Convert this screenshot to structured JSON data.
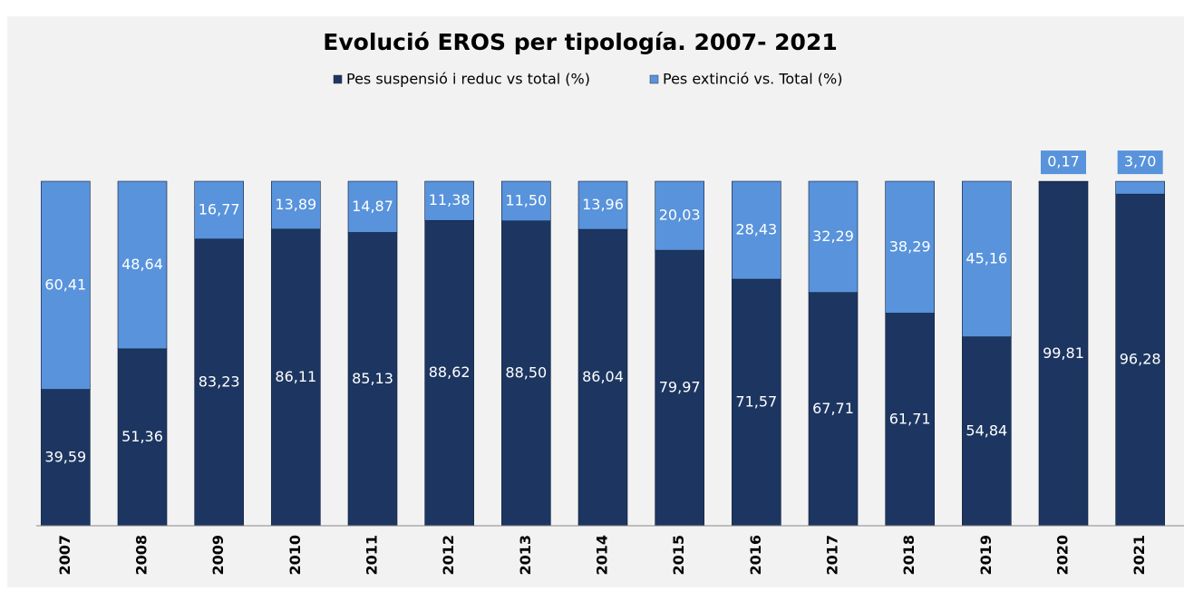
{
  "chart_data": {
    "type": "stacked_bar",
    "title": "Evolució EROS per tipología. 2007- 2021",
    "categories": [
      "2007",
      "2008",
      "2009",
      "2010",
      "2011",
      "2012",
      "2013",
      "2014",
      "2015",
      "2016",
      "2017",
      "2018",
      "2019",
      "2020",
      "2021"
    ],
    "series": [
      {
        "name": "Pes suspensió i reduc vs total (%)",
        "color": "#1d3661",
        "values": [
          39.59,
          51.36,
          83.23,
          86.11,
          85.13,
          88.62,
          88.5,
          86.04,
          79.97,
          71.57,
          67.71,
          61.71,
          54.84,
          99.81,
          96.28
        ],
        "value_labels": [
          "39,59",
          "51,36",
          "83,23",
          "86,11",
          "85,13",
          "88,62",
          "88,50",
          "86,04",
          "79,97",
          "71,57",
          "67,71",
          "61,71",
          "54,84",
          "99,81",
          "96,28"
        ]
      },
      {
        "name": "Pes extinció vs. Total (%)",
        "color": "#5893dc",
        "values": [
          60.41,
          48.64,
          16.77,
          13.89,
          14.87,
          11.38,
          11.5,
          13.96,
          20.03,
          28.43,
          32.29,
          38.29,
          45.16,
          0.17,
          3.7
        ],
        "value_labels": [
          "60,41",
          "48,64",
          "16,77",
          "13,89",
          "14,87",
          "11,38",
          "11,50",
          "13,96",
          "20,03",
          "28,43",
          "32,29",
          "38,29",
          "45,16",
          "0,17",
          "3,70"
        ]
      }
    ],
    "ylim": [
      0,
      100
    ]
  }
}
